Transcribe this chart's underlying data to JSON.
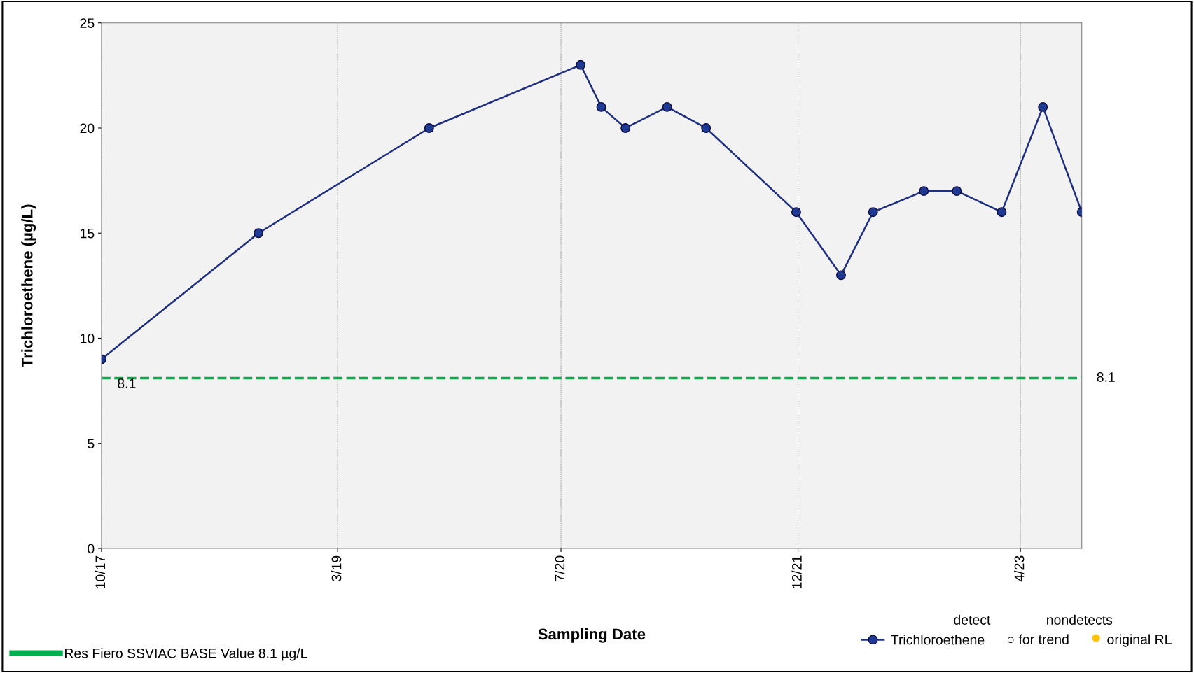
{
  "chart_data": {
    "type": "line",
    "xlabel": "Sampling Date",
    "ylabel": "Trichloroethene (µg/L)",
    "x": [
      "2017-10-01",
      "2018-09-09",
      "2019-09-17",
      "2020-08-13",
      "2020-09-27",
      "2020-11-19",
      "2021-02-18",
      "2021-05-14",
      "2021-11-27",
      "2022-03-05",
      "2022-05-14",
      "2022-09-02",
      "2022-11-13",
      "2023-02-19",
      "2023-05-20",
      "2023-08-13"
    ],
    "series": [
      {
        "name": "Trichloroethene",
        "color": "#1f2f80",
        "values": [
          9,
          15,
          20,
          23,
          21,
          20,
          21,
          20,
          16,
          13,
          16,
          17,
          17,
          16,
          21,
          16
        ]
      }
    ],
    "xlim": [
      "2017-10-01",
      "2023-08-13"
    ],
    "xticks": [
      {
        "value": "2017-10-01",
        "label": "10/17"
      },
      {
        "value": "2019-03-01",
        "label": "3/19"
      },
      {
        "value": "2020-07-01",
        "label": "7/20"
      },
      {
        "value": "2021-12-01",
        "label": "12/21"
      },
      {
        "value": "2023-04-01",
        "label": "4/23"
      }
    ],
    "ylim": [
      0,
      25
    ],
    "yticks": [
      0,
      5,
      10,
      15,
      20,
      25
    ],
    "grid": "x",
    "marker": "circle",
    "line_style": "solid",
    "legend": "bottom",
    "ref_lines": [
      {
        "axis": "y",
        "value": 8.1,
        "label": "Res Fiero SSVIAC BASE Value 8.1 µg/L",
        "color": "#00b050",
        "line_style": "dashed"
      }
    ],
    "annotations": [
      "8.1",
      "8.1",
      "detect",
      "nondetects",
      "○ for trend",
      "original RL"
    ]
  }
}
